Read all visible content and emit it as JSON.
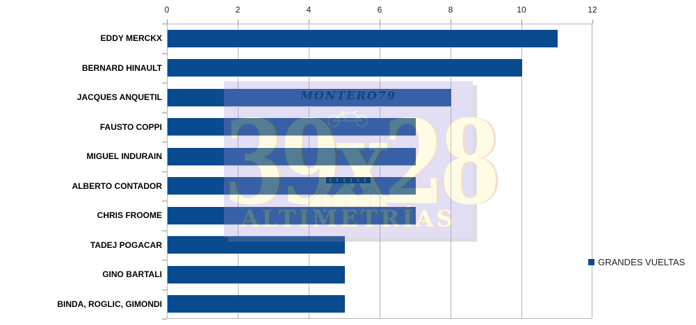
{
  "chart_data": {
    "type": "bar",
    "orientation": "horizontal",
    "title": "",
    "categories": [
      "EDDY MERCKX",
      "BERNARD HINAULT",
      "JACQUES ANQUETIL",
      "FAUSTO COPPI",
      "MIGUEL INDURAIN",
      "ALBERTO CONTADOR",
      "CHRIS FROOME",
      "TADEJ POGACAR",
      "GINO BARTALI",
      "BINDA, ROGLIC, GIMONDI"
    ],
    "series": [
      {
        "name": "GRANDES VUELTAS",
        "values": [
          11,
          10,
          8,
          7,
          7,
          7,
          7,
          5,
          5,
          5
        ]
      }
    ],
    "x_ticks": [
      0,
      2,
      4,
      6,
      8,
      10,
      12
    ],
    "xlim": [
      0,
      12
    ],
    "xlabel": "",
    "ylabel": "",
    "grid": "vertical",
    "axis_position": "top",
    "legend_position": "right"
  },
  "legend": {
    "label": "GRANDES VUELTAS"
  },
  "watermark": {
    "author": "MONTERO79",
    "brand": "39x28",
    "subtitle": "ALTIMETRÍAS",
    "icons": [
      "bicycle-icon",
      "mountain-profile-icon"
    ]
  },
  "colors": {
    "bar": "#0a4a8e",
    "gridline": "#b3b3b3",
    "axis": "#8f8f8f",
    "tick_label": "#1a1a1a",
    "category_label": "#000000",
    "legend_text": "#1f1f1f",
    "watermark_box": "#a294dd",
    "watermark_cream": "#fff3a8",
    "watermark_dark": "#14404f",
    "watermark_gold": "#d89a33"
  }
}
